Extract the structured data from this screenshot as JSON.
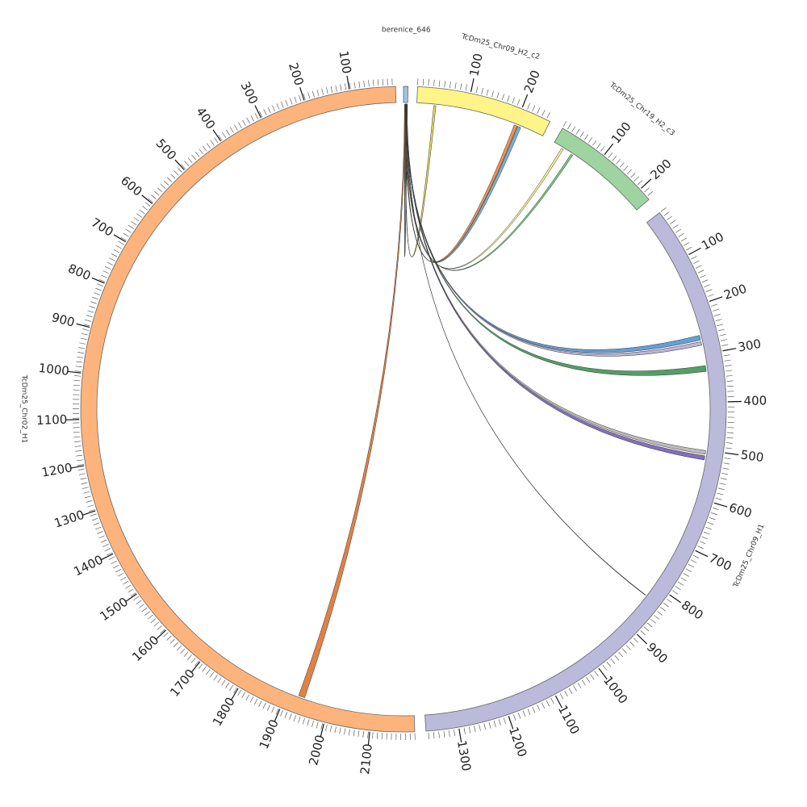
{
  "colors": {
    "background": "#ffffff",
    "outline": "#666666",
    "tick": "#444444"
  },
  "segments": [
    {
      "id": "berenice_646",
      "label": "berenice_646",
      "color": "#9fc5e0",
      "length": 6,
      "major_ticks": []
    },
    {
      "id": "c2",
      "label": "TcDm25_Chr09_H2_c2",
      "color": "#fef487",
      "length": 260,
      "major_ticks": [
        "100",
        "200"
      ]
    },
    {
      "id": "c3",
      "label": "TcDm25_Chr19_H2_c3",
      "color": "#9fd4a0",
      "length": 240,
      "major_ticks": [
        "100",
        "200"
      ]
    },
    {
      "id": "h1",
      "label": "TcDm25_Chr09_H1",
      "color": "#bcbadb",
      "length": 1360,
      "major_ticks": [
        "100",
        "200",
        "300",
        "400",
        "500",
        "600",
        "700",
        "800",
        "900",
        "1000",
        "1100",
        "1200",
        "1300"
      ]
    },
    {
      "id": "chr02",
      "label": "TcDm25_Chr02_H1",
      "color": "#fdb47c",
      "length": 2150,
      "major_ticks": [
        "100",
        "200",
        "300",
        "400",
        "500",
        "600",
        "700",
        "800",
        "900",
        "1000",
        "1100",
        "1200",
        "1300",
        "1400",
        "1500",
        "1600",
        "1700",
        "1800",
        "1900",
        "2000",
        "2100"
      ]
    }
  ],
  "links": [
    {
      "from": "berenice_646",
      "to": "TcDm25_Chr09_H2_c2",
      "color": "#e8d84a"
    },
    {
      "from": "berenice_646",
      "to": "TcDm25_Chr09_H2_c2",
      "color": "#6baed6"
    },
    {
      "from": "berenice_646",
      "to": "TcDm25_Chr09_H2_c2",
      "color": "#f08a4b"
    },
    {
      "from": "berenice_646",
      "to": "TcDm25_Chr19_H2_c3",
      "color": "#f7f08a"
    },
    {
      "from": "berenice_646",
      "to": "TcDm25_Chr19_H2_c3",
      "color": "#74c476"
    },
    {
      "from": "berenice_646",
      "to": "TcDm25_Chr09_H1",
      "color": "#5b9bd5"
    },
    {
      "from": "berenice_646",
      "to": "TcDm25_Chr09_H1",
      "color": "#b9b0d6"
    },
    {
      "from": "berenice_646",
      "to": "TcDm25_Chr09_H1",
      "color": "#4a9a5c"
    },
    {
      "from": "berenice_646",
      "to": "TcDm25_Chr09_H1",
      "color": "#b8b8b8"
    },
    {
      "from": "berenice_646",
      "to": "TcDm25_Chr09_H1",
      "color": "#7b68b8"
    },
    {
      "from": "berenice_646",
      "to": "TcDm25_Chr09_H1",
      "color": "#222222"
    },
    {
      "from": "berenice_646",
      "to": "TcDm25_Chr02_H1",
      "color": "#e07a3c"
    },
    {
      "from": "berenice_646",
      "to": "berenice_646",
      "color": "#d6c34a"
    }
  ]
}
